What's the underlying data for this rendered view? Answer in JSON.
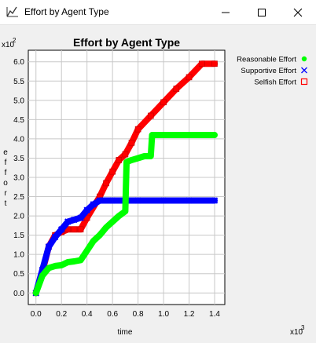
{
  "window": {
    "title": "Effort by Agent Type",
    "icon": "chart-app-icon",
    "controls": [
      "minimize-icon",
      "maximize-icon",
      "close-icon"
    ]
  },
  "chart_data": {
    "type": "line",
    "title": "Effort by Agent Type",
    "xlabel": "time",
    "ylabel": "effort",
    "x_multiplier": "x10",
    "x_multiplier_exp": "3",
    "y_multiplier": "x10",
    "y_multiplier_exp": "2",
    "xlim": [
      -0.06,
      1.48
    ],
    "ylim": [
      -0.3,
      6.3
    ],
    "xticks": [
      0.0,
      0.2,
      0.4,
      0.6,
      0.8,
      1.0,
      1.2,
      1.4
    ],
    "xtick_labels": [
      "0.0",
      "0.2",
      "0.4",
      "0.6",
      "0.8",
      "1.0",
      "1.2",
      "1.4"
    ],
    "yticks": [
      0.0,
      0.5,
      1.0,
      1.5,
      2.0,
      2.5,
      3.0,
      3.5,
      4.0,
      4.5,
      5.0,
      5.5,
      6.0
    ],
    "ytick_labels": [
      "0.0",
      "0.5",
      "1.0",
      "1.5",
      "2.0",
      "2.5",
      "3.0",
      "3.5",
      "4.0",
      "4.5",
      "5.0",
      "5.5",
      "6.0"
    ],
    "grid": true,
    "legend_position": "right",
    "series": [
      {
        "name": "Selfish Effort",
        "color": "#ff0000",
        "marker": "square",
        "points": [
          [
            0.0,
            0.0
          ],
          [
            0.05,
            0.55
          ],
          [
            0.1,
            1.2
          ],
          [
            0.15,
            1.5
          ],
          [
            0.2,
            1.58
          ],
          [
            0.25,
            1.65
          ],
          [
            0.3,
            1.65
          ],
          [
            0.35,
            1.65
          ],
          [
            0.4,
            1.95
          ],
          [
            0.5,
            2.5
          ],
          [
            0.55,
            2.85
          ],
          [
            0.6,
            3.15
          ],
          [
            0.65,
            3.45
          ],
          [
            0.7,
            3.6
          ],
          [
            0.75,
            3.9
          ],
          [
            0.8,
            4.25
          ],
          [
            0.9,
            4.6
          ],
          [
            1.0,
            4.95
          ],
          [
            1.1,
            5.3
          ],
          [
            1.2,
            5.6
          ],
          [
            1.3,
            5.95
          ],
          [
            1.4,
            5.95
          ]
        ]
      },
      {
        "name": "Supportive Effort",
        "color": "#0000ff",
        "marker": "x",
        "points": [
          [
            0.0,
            0.0
          ],
          [
            0.05,
            0.6
          ],
          [
            0.1,
            1.2
          ],
          [
            0.15,
            1.45
          ],
          [
            0.2,
            1.65
          ],
          [
            0.25,
            1.85
          ],
          [
            0.3,
            1.9
          ],
          [
            0.35,
            1.95
          ],
          [
            0.4,
            2.15
          ],
          [
            0.45,
            2.3
          ],
          [
            0.5,
            2.4
          ],
          [
            0.6,
            2.4
          ],
          [
            0.8,
            2.4
          ],
          [
            1.0,
            2.4
          ],
          [
            1.2,
            2.4
          ],
          [
            1.4,
            2.4
          ]
        ]
      },
      {
        "name": "Reasonable Effort",
        "color": "#00ff00",
        "marker": "circle",
        "points": [
          [
            0.0,
            0.0
          ],
          [
            0.05,
            0.45
          ],
          [
            0.1,
            0.65
          ],
          [
            0.15,
            0.7
          ],
          [
            0.2,
            0.72
          ],
          [
            0.25,
            0.8
          ],
          [
            0.3,
            0.82
          ],
          [
            0.35,
            0.85
          ],
          [
            0.4,
            1.1
          ],
          [
            0.45,
            1.35
          ],
          [
            0.5,
            1.5
          ],
          [
            0.55,
            1.7
          ],
          [
            0.6,
            1.85
          ],
          [
            0.65,
            2.0
          ],
          [
            0.7,
            2.12
          ],
          [
            0.71,
            3.4
          ],
          [
            0.75,
            3.45
          ],
          [
            0.8,
            3.5
          ],
          [
            0.85,
            3.55
          ],
          [
            0.9,
            3.55
          ],
          [
            0.91,
            4.1
          ],
          [
            1.0,
            4.1
          ],
          [
            1.2,
            4.1
          ],
          [
            1.4,
            4.1
          ]
        ]
      }
    ],
    "legend_order": [
      "Reasonable Effort",
      "Supportive Effort",
      "Selfish Effort"
    ]
  }
}
